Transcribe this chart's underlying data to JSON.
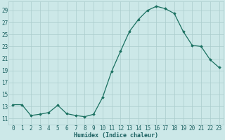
{
  "x": [
    0,
    1,
    2,
    3,
    4,
    5,
    6,
    7,
    8,
    9,
    10,
    11,
    12,
    13,
    14,
    15,
    16,
    17,
    18,
    19,
    20,
    21,
    22,
    23
  ],
  "y": [
    13.3,
    13.3,
    11.5,
    11.7,
    12.0,
    13.2,
    11.8,
    11.5,
    11.3,
    11.7,
    14.5,
    18.8,
    22.2,
    25.5,
    27.5,
    29.0,
    29.7,
    29.3,
    28.5,
    25.5,
    23.2,
    23.0,
    20.8,
    19.5
  ],
  "line_color": "#1a7060",
  "marker": "D",
  "marker_size": 1.8,
  "linewidth": 0.9,
  "bg_color": "#cce8e8",
  "grid_color": "#aacccc",
  "xlabel": "Humidex (Indice chaleur)",
  "ylim": [
    10.0,
    30.5
  ],
  "xlim": [
    -0.5,
    23.5
  ],
  "yticks": [
    11,
    13,
    15,
    17,
    19,
    21,
    23,
    25,
    27,
    29
  ],
  "xlabel_fontsize": 6.0,
  "tick_fontsize": 5.5,
  "axis_color": "#1a6060"
}
